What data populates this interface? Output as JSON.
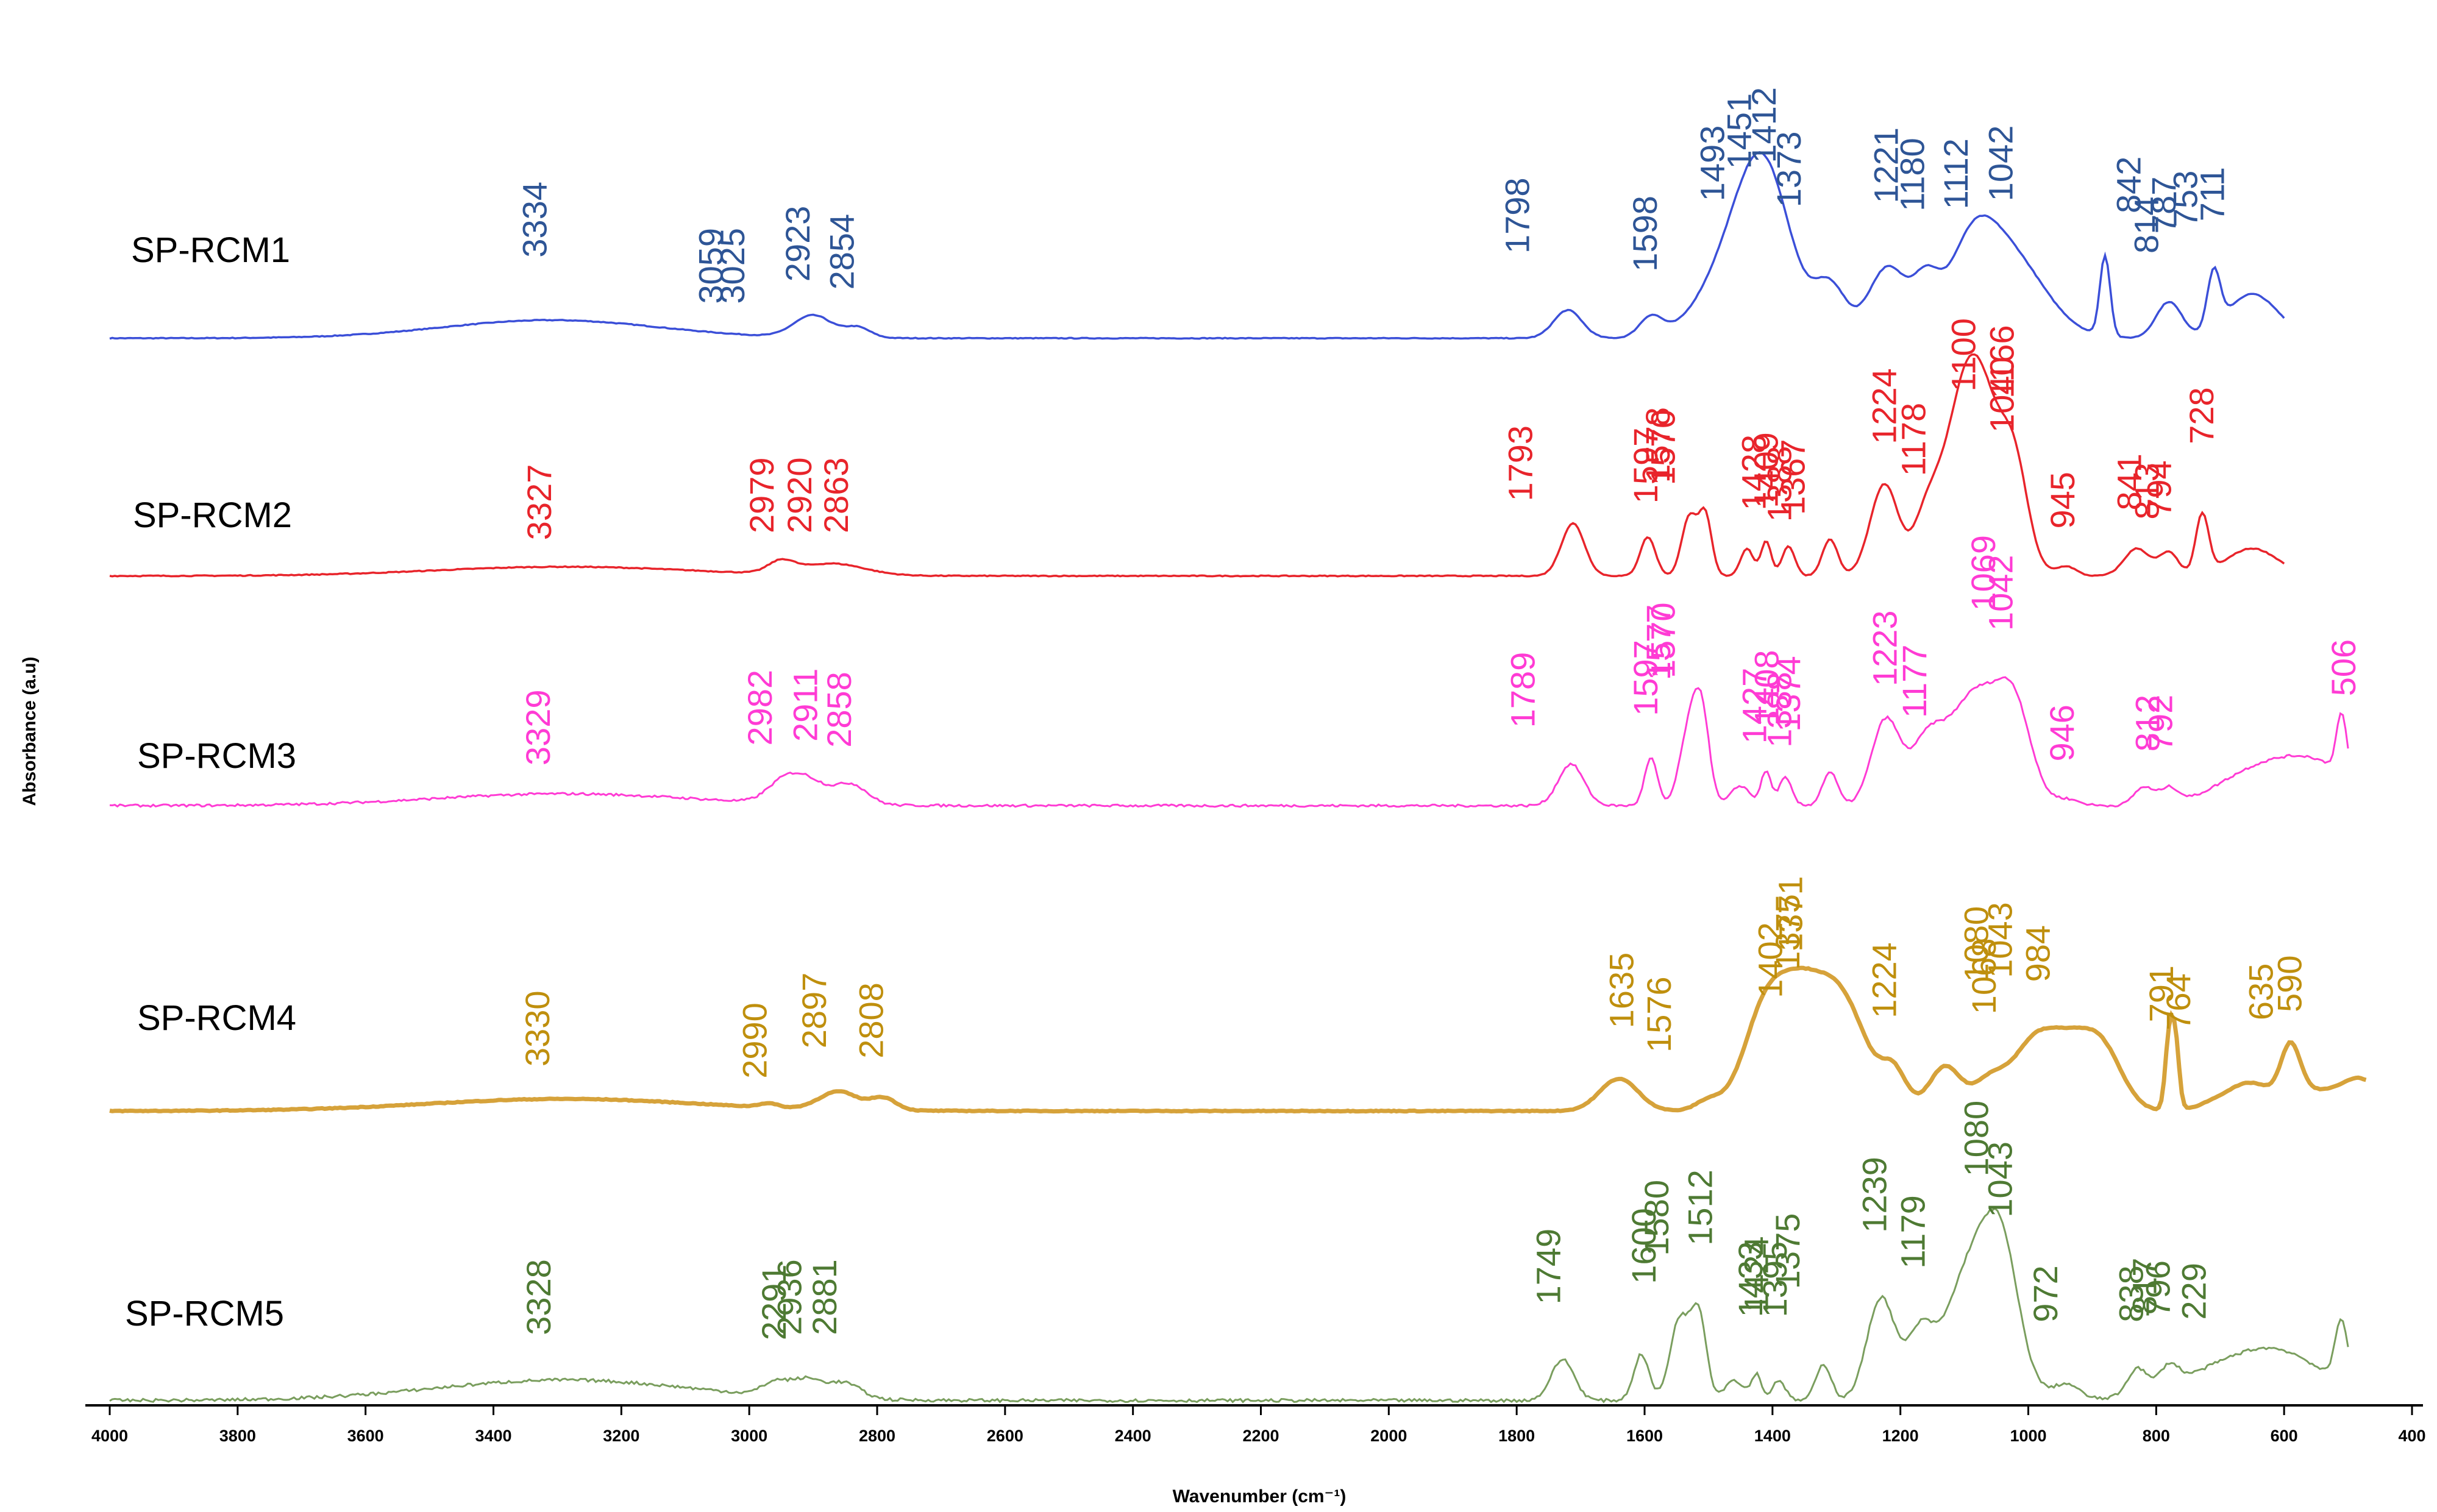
{
  "chart_data": {
    "type": "line",
    "title": "",
    "xlabel": "Wavenumber (cm⁻¹)",
    "ylabel": "Absorbance (a.u)",
    "xlim": [
      4000,
      400
    ],
    "x_ticks": [
      4000,
      3800,
      3600,
      3400,
      3200,
      3000,
      2800,
      2600,
      2400,
      2200,
      2000,
      1800,
      1600,
      1400,
      1200,
      1000,
      800,
      600,
      400
    ],
    "grid": false,
    "legend": "none",
    "series": [
      {
        "name": "SP-RCM1",
        "color": "#3b4fd8",
        "label_color": "#2e5596",
        "x_end": 600,
        "peaks": [
          "3334",
          "3059",
          "3025",
          "2923",
          "2854",
          "1798",
          "1598",
          "1493",
          "1451",
          "1412",
          "1373",
          "1221",
          "1180",
          "1112",
          "1042",
          "842",
          "814",
          "787",
          "753",
          "711"
        ]
      },
      {
        "name": "SP-RCM2",
        "color": "#e8242b",
        "label_color": "#e8242b",
        "x_end": 600,
        "peaks": [
          "3327",
          "2979",
          "2920",
          "2863",
          "1793",
          "1597",
          "1578",
          "1570",
          "1428",
          "1409",
          "1388",
          "1367",
          "1224",
          "1178",
          "1100",
          "1166",
          "1040",
          "945",
          "841",
          "813",
          "794",
          "728"
        ]
      },
      {
        "name": "SP-RCM3",
        "color": "#ff3bd4",
        "label_color": "#ff3bd4",
        "x_end": 500,
        "peaks": [
          "3329",
          "2982",
          "2911",
          "2858",
          "1789",
          "1597",
          "1577",
          "1570",
          "1427",
          "1408",
          "1388",
          "1374",
          "1223",
          "1177",
          "1069",
          "1042",
          "946",
          "812",
          "792",
          "506"
        ]
      },
      {
        "name": "SP-RCM4",
        "color": "#d6a23a",
        "label_color": "#bf8f0d",
        "x_end": 470,
        "peaks": [
          "3330",
          "2990",
          "2897",
          "2808",
          "1635",
          "1576",
          "1402",
          "1371",
          "1375",
          "1224",
          "1080",
          "1068",
          "984",
          "1043",
          "791",
          "764",
          "635",
          "590"
        ]
      },
      {
        "name": "SP-RCM5",
        "color": "#7a9e5e",
        "label_color": "#4e7a33",
        "x_end": 500,
        "peaks": [
          "3328",
          "2291",
          "2936",
          "2881",
          "1749",
          "1600",
          "1580",
          "1512",
          "1433",
          "1424",
          "1395",
          "1375",
          "1239",
          "1179",
          "1080",
          "1043",
          "972",
          "838",
          "817",
          "796",
          "229"
        ]
      }
    ]
  }
}
